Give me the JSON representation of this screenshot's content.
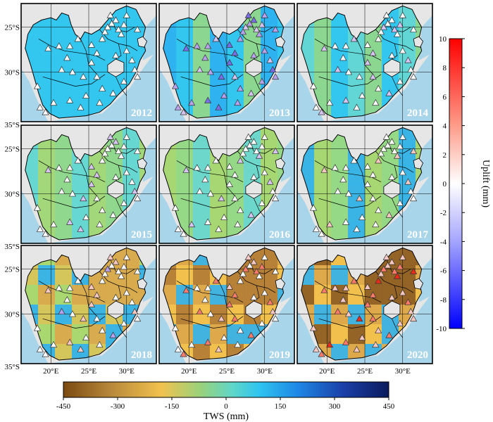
{
  "years": [
    "2012",
    "2013",
    "2014",
    "2015",
    "2016",
    "2017",
    "2018",
    "2019",
    "2020"
  ],
  "lat_ticks": [
    "25°S",
    "30°S",
    "35°S"
  ],
  "lon_ticks": [
    "20°E",
    "25°E",
    "30°E"
  ],
  "tws_colorbar": {
    "title": "TWS (mm)",
    "ticks": [
      "-450",
      "-300",
      "-150",
      "0",
      "150",
      "300",
      "450"
    ],
    "range": [
      -450,
      450
    ],
    "stops": [
      "#7a4a12",
      "#b98a3a",
      "#f2c14e",
      "#9ad27a",
      "#5fd6c8",
      "#2ec5ef",
      "#1e88e5",
      "#1a3fa8",
      "#0a1a5c"
    ]
  },
  "uplift_colorbar": {
    "title": "Uplift (mm)",
    "ticks": [
      "10",
      "8",
      "6",
      "4",
      "2",
      "0",
      "-2",
      "-4",
      "-6",
      "-8",
      "-10"
    ],
    "range": [
      -10,
      10
    ],
    "stops": [
      "#ff0000",
      "#ff9c8a",
      "#ffffff",
      "#a4a4ff",
      "#0000ff"
    ]
  },
  "colors": {
    "land": "#e6e6e6",
    "ocean": "#a9d5ea",
    "frame": "#000000",
    "border": "#000000"
  }
}
